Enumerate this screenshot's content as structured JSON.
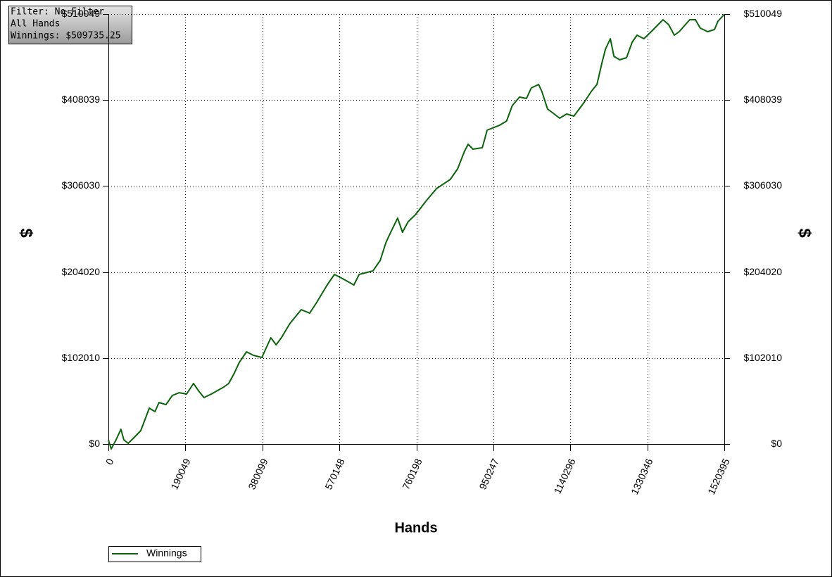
{
  "chart_data": {
    "type": "line",
    "annotations": [
      "Filter: No Filter",
      "All Hands",
      "Winnings: $509735.25"
    ],
    "xlabel": "Hands",
    "ylabel": "$",
    "y2label": "$",
    "xlim": [
      0,
      1520395
    ],
    "xticks": [
      0,
      190049,
      380099,
      570148,
      760198,
      950247,
      1140296,
      1330346,
      1520395
    ],
    "ylim": [
      -7500,
      510049
    ],
    "yticks": [
      {
        "value": 0,
        "label": "$0"
      },
      {
        "value": 102010,
        "label": "$102010"
      },
      {
        "value": 204020,
        "label": "$204020"
      },
      {
        "value": 306030,
        "label": "$306030"
      },
      {
        "value": 408039,
        "label": "$408039"
      },
      {
        "value": 510049,
        "label": "$510049"
      }
    ],
    "grid": true,
    "legend": "bottom-left",
    "series": [
      {
        "name": "Winnings",
        "color": "#0b640b",
        "x": [
          0,
          7000,
          19000,
          31000,
          38000,
          49000,
          63000,
          80000,
          101000,
          115000,
          125000,
          142000,
          158000,
          175000,
          193000,
          210000,
          222000,
          236000,
          254000,
          285000,
          297000,
          311000,
          323000,
          341000,
          358000,
          379000,
          389000,
          401000,
          414000,
          427000,
          448000,
          476000,
          497000,
          514000,
          540000,
          558000,
          575000,
          606000,
          619000,
          653000,
          671000,
          685000,
          697000,
          714000,
          726000,
          740000,
          758000,
          785000,
          810000,
          844000,
          862000,
          879000,
          888000,
          900000,
          923000,
          935000,
          966000,
          983000,
          997000,
          1015000,
          1032000,
          1044000,
          1062000,
          1070000,
          1084000,
          1096000,
          1114000,
          1131000,
          1149000,
          1175000,
          1192000,
          1206000,
          1218000,
          1227000,
          1239000,
          1248000,
          1262000,
          1279000,
          1293000,
          1305000,
          1322000,
          1340000,
          1369000,
          1383000,
          1397000,
          1409000,
          1435000,
          1449000,
          1461000,
          1479000,
          1496000,
          1505000,
          1520395
        ],
        "values": [
          5000,
          -5800,
          5000,
          17500,
          5000,
          800,
          7500,
          15900,
          42600,
          38400,
          49300,
          46700,
          57600,
          60900,
          59300,
          71800,
          63400,
          55100,
          59300,
          67600,
          71800,
          84300,
          96800,
          109400,
          105200,
          102700,
          113500,
          126100,
          117700,
          126100,
          142800,
          159400,
          155300,
          167800,
          188700,
          201200,
          197000,
          188700,
          201200,
          205400,
          217900,
          238800,
          251300,
          268000,
          251300,
          263800,
          272100,
          288800,
          303000,
          313900,
          326400,
          347300,
          355600,
          349800,
          351500,
          372300,
          378200,
          383200,
          401500,
          411600,
          409900,
          422400,
          426600,
          418200,
          397400,
          393200,
          386500,
          391500,
          389000,
          405700,
          418200,
          426600,
          451600,
          468300,
          480800,
          460000,
          455800,
          458300,
          476700,
          485000,
          480800,
          489200,
          503400,
          497500,
          485000,
          489200,
          503400,
          503400,
          493400,
          489200,
          491700,
          501700,
          509735.25
        ]
      }
    ]
  }
}
